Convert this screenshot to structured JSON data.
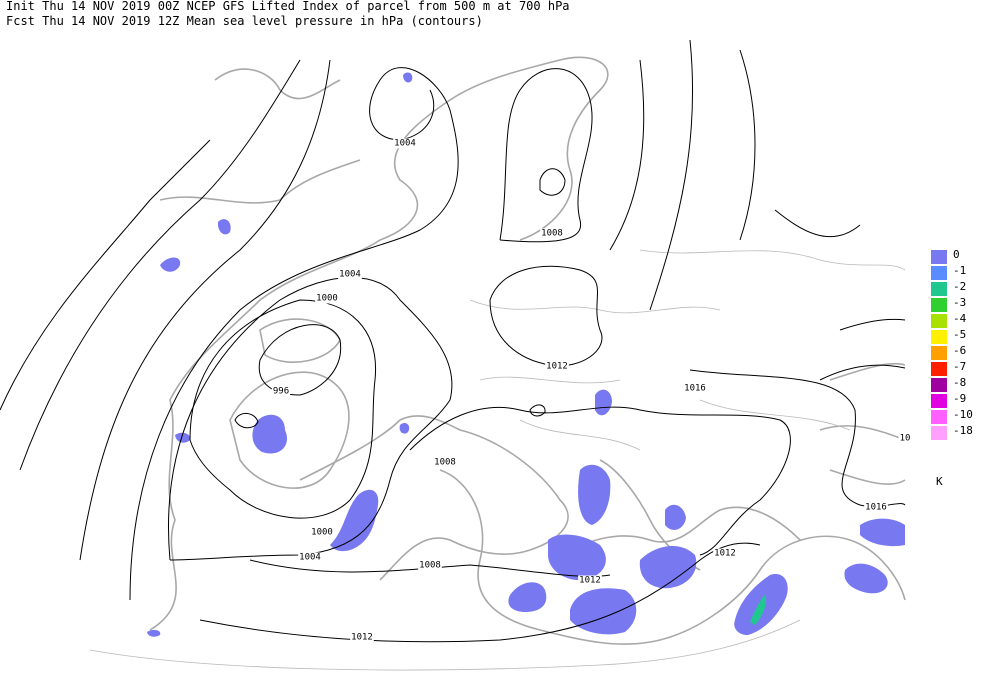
{
  "header": {
    "lines": [
      "Init  Thu 14 NOV 2019 00Z  NCEP GFS Lifted Index of parcel from 500 m at 700 hPa",
      "Fcst Thu 14 NOV 2019 12Z  Mean sea level pressure in hPa (contours)"
    ]
  },
  "contour_labels": [
    "1004",
    "1008",
    "1004",
    "1000",
    "996",
    "1012",
    "1016",
    "1008",
    "1000",
    "1004",
    "1008",
    "1012",
    "1012",
    "1016",
    "1012",
    "10"
  ],
  "legend": {
    "items": [
      {
        "label": "0",
        "color": "#7878f0"
      },
      {
        "label": "-1",
        "color": "#5a8cff"
      },
      {
        "label": "-2",
        "color": "#20c890"
      },
      {
        "label": "-3",
        "color": "#30d030"
      },
      {
        "label": "-4",
        "color": "#a8e000"
      },
      {
        "label": "-5",
        "color": "#fff000"
      },
      {
        "label": "-6",
        "color": "#ffa000"
      },
      {
        "label": "-7",
        "color": "#ff2000"
      },
      {
        "label": "-8",
        "color": "#a000a0"
      },
      {
        "label": "-9",
        "color": "#e000e0"
      },
      {
        "label": "-10",
        "color": "#ff60ff"
      },
      {
        "label": "-18",
        "color": "#ffa0ff"
      }
    ],
    "unit": "K"
  }
}
